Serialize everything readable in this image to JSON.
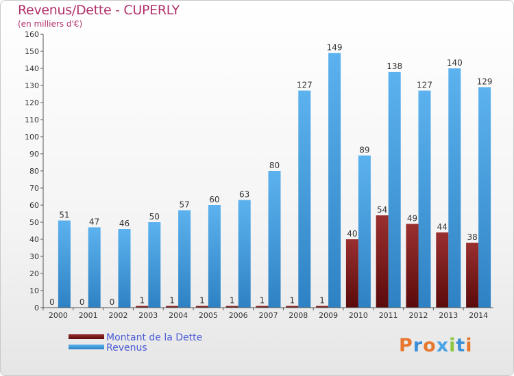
{
  "chart_data": {
    "type": "bar",
    "title": "Revenus/Dette - CUPERLY",
    "subtitle": "(en milliers d'€)",
    "categories": [
      "2000",
      "2001",
      "2002",
      "2003",
      "2004",
      "2005",
      "2006",
      "2007",
      "2008",
      "2009",
      "2010",
      "2011",
      "2012",
      "2013",
      "2014"
    ],
    "series": [
      {
        "name": "Montant de la Dette",
        "color": "#7a1a1a",
        "values": [
          0,
          0,
          0,
          1,
          1,
          1,
          1,
          1,
          1,
          1,
          40,
          54,
          49,
          44,
          38
        ]
      },
      {
        "name": "Revenus",
        "color": "#4aa3e6",
        "values": [
          51,
          47,
          46,
          50,
          57,
          60,
          63,
          80,
          127,
          149,
          89,
          138,
          127,
          140,
          129
        ]
      }
    ],
    "yticks": [
      "0",
      "10",
      "20",
      "30",
      "40",
      "50",
      "60",
      "70",
      "80",
      "90",
      "100",
      "110",
      "120",
      "130",
      "140",
      "150",
      "160"
    ],
    "ylim": [
      0,
      160
    ],
    "grid": false,
    "legend": "bottom-left"
  },
  "logo": {
    "text": "Proxiti",
    "letters": [
      "P",
      "r",
      "o",
      "x",
      "i",
      "t",
      "i"
    ],
    "colors": [
      "#e8772e",
      "#3a8fd6",
      "#e8772e",
      "#4aa3e6",
      "#8cc63f",
      "#3a8fd6",
      "#e8772e"
    ]
  }
}
